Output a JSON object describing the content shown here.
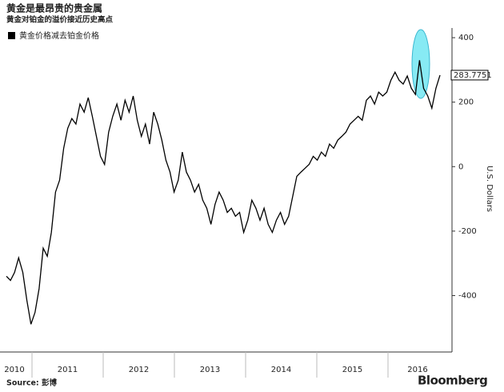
{
  "chart_data": {
    "type": "line",
    "title": "黄金是最昂贵的贵金属",
    "subtitle": "黄金对铂金的溢价接近历史高点",
    "y_axis_label": "U.S. Dollars",
    "source": "Source: 彭博",
    "brand": "Bloomberg",
    "x_axis_labels": [
      "2010",
      "2011",
      "2012",
      "2013",
      "2014",
      "2015",
      "2016"
    ],
    "ylim": [
      -575,
      430
    ],
    "yticks": [
      400,
      200,
      0,
      -200,
      -400
    ],
    "grid": false,
    "series": [
      {
        "name": "黄金价格减去铂金价格",
        "color": "#000000",
        "values": [
          -340,
          -353,
          -328,
          -283,
          -328,
          -415,
          -489,
          -452,
          -378,
          -253,
          -278,
          -204,
          -79,
          -42,
          57,
          119,
          149,
          132,
          194,
          169,
          214,
          156,
          94,
          32,
          7,
          107,
          156,
          194,
          144,
          206,
          169,
          219,
          144,
          94,
          132,
          70,
          169,
          132,
          82,
          20,
          -17,
          -79,
          -42,
          45,
          -17,
          -42,
          -79,
          -55,
          -104,
          -129,
          -179,
          -117,
          -79,
          -104,
          -142,
          -129,
          -154,
          -142,
          -204,
          -166,
          -104,
          -129,
          -166,
          -129,
          -179,
          -204,
          -166,
          -142,
          -179,
          -154,
          -92,
          -30,
          -17,
          -5,
          7,
          32,
          20,
          45,
          32,
          70,
          57,
          82,
          94,
          107,
          132,
          144,
          156,
          144,
          206,
          219,
          194,
          231,
          219,
          231,
          268,
          293,
          268,
          256,
          281,
          243,
          224,
          330,
          243,
          219,
          181,
          243,
          283.7751
        ]
      }
    ]
  }
}
